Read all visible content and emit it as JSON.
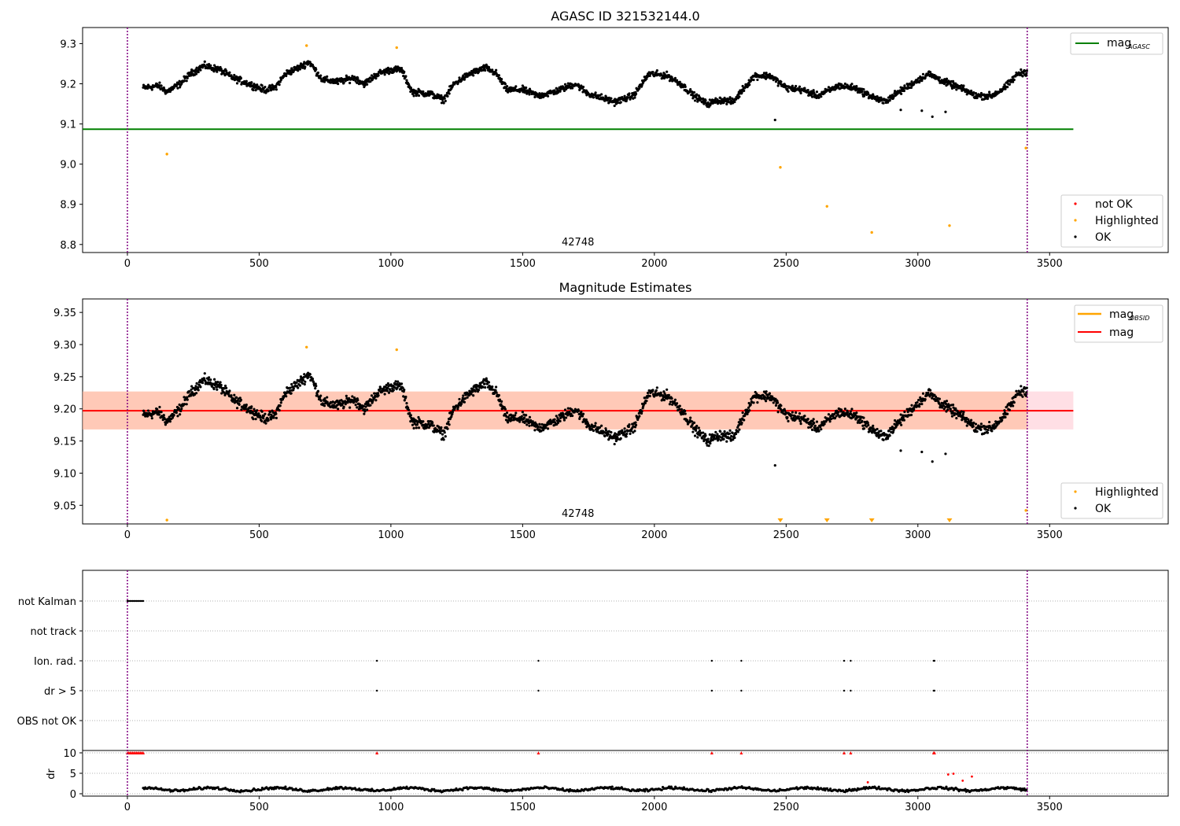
{
  "chart_data": [
    {
      "type": "scatter",
      "title": "AGASC ID 321532144.0",
      "xlim": [
        -170,
        3950
      ],
      "ylim": [
        8.78,
        9.34
      ],
      "x_ticks": [
        "0",
        "500",
        "1000",
        "1500",
        "2000",
        "2500",
        "3000",
        "3500"
      ],
      "y_ticks": [
        "8.8",
        "8.9",
        "9.0",
        "9.1",
        "9.2",
        "9.3"
      ],
      "obs_label": "42748",
      "obs_boundaries": [
        0,
        3415
      ],
      "mag_agasc": 9.087,
      "line_legend": [
        {
          "name": "mag",
          "sub": "AGASC",
          "color": "#008000"
        }
      ],
      "point_legend": [
        {
          "name": "not OK",
          "color": "#ff0000"
        },
        {
          "name": "Highlighted",
          "color": "#ffa500"
        },
        {
          "name": "OK",
          "color": "#000000"
        }
      ],
      "highlighted": [
        [
          150,
          9.025
        ],
        [
          680,
          9.295
        ],
        [
          1022,
          9.29
        ],
        [
          2478,
          8.992
        ],
        [
          2655,
          8.895
        ],
        [
          2825,
          8.83
        ],
        [
          3120,
          8.847
        ],
        [
          3410,
          9.04
        ]
      ],
      "outliers": [
        [
          2458,
          9.11
        ],
        [
          2935,
          9.135
        ],
        [
          3015,
          9.133
        ],
        [
          3055,
          9.118
        ],
        [
          3105,
          9.13
        ]
      ],
      "series_profile": [
        [
          60,
          9.19
        ],
        [
          120,
          9.195
        ],
        [
          150,
          9.18
        ],
        [
          200,
          9.2
        ],
        [
          240,
          9.225
        ],
        [
          290,
          9.245
        ],
        [
          350,
          9.235
        ],
        [
          400,
          9.215
        ],
        [
          460,
          9.2
        ],
        [
          520,
          9.185
        ],
        [
          560,
          9.19
        ],
        [
          600,
          9.225
        ],
        [
          650,
          9.24
        ],
        [
          690,
          9.255
        ],
        [
          740,
          9.21
        ],
        [
          800,
          9.205
        ],
        [
          860,
          9.215
        ],
        [
          900,
          9.2
        ],
        [
          950,
          9.225
        ],
        [
          1000,
          9.235
        ],
        [
          1040,
          9.235
        ],
        [
          1080,
          9.18
        ],
        [
          1150,
          9.175
        ],
        [
          1200,
          9.16
        ],
        [
          1240,
          9.2
        ],
        [
          1300,
          9.225
        ],
        [
          1360,
          9.24
        ],
        [
          1400,
          9.225
        ],
        [
          1440,
          9.185
        ],
        [
          1500,
          9.185
        ],
        [
          1560,
          9.17
        ],
        [
          1620,
          9.18
        ],
        [
          1700,
          9.2
        ],
        [
          1750,
          9.175
        ],
        [
          1800,
          9.165
        ],
        [
          1850,
          9.155
        ],
        [
          1920,
          9.17
        ],
        [
          1980,
          9.225
        ],
        [
          2050,
          9.22
        ],
        [
          2100,
          9.2
        ],
        [
          2150,
          9.17
        ],
        [
          2200,
          9.15
        ],
        [
          2250,
          9.16
        ],
        [
          2300,
          9.155
        ],
        [
          2340,
          9.19
        ],
        [
          2380,
          9.22
        ],
        [
          2440,
          9.22
        ],
        [
          2500,
          9.19
        ],
        [
          2560,
          9.185
        ],
        [
          2620,
          9.17
        ],
        [
          2700,
          9.195
        ],
        [
          2760,
          9.19
        ],
        [
          2820,
          9.17
        ],
        [
          2870,
          9.155
        ],
        [
          2930,
          9.18
        ],
        [
          2990,
          9.205
        ],
        [
          3040,
          9.225
        ],
        [
          3100,
          9.205
        ],
        [
          3160,
          9.19
        ],
        [
          3220,
          9.17
        ],
        [
          3280,
          9.17
        ],
        [
          3330,
          9.19
        ],
        [
          3380,
          9.225
        ],
        [
          3415,
          9.23
        ]
      ]
    },
    {
      "type": "scatter",
      "title": "Magnitude Estimates",
      "xlim": [
        -170,
        3950
      ],
      "ylim": [
        9.021,
        9.371
      ],
      "x_ticks": [
        "0",
        "500",
        "1000",
        "1500",
        "2000",
        "2500",
        "3000",
        "3500"
      ],
      "y_ticks": [
        "9.05",
        "9.10",
        "9.15",
        "9.20",
        "9.25",
        "9.30",
        "9.35"
      ],
      "obs_label": "42748",
      "mag": 9.197,
      "band_obsid": [
        9.168,
        9.227
      ],
      "band_total": [
        9.168,
        9.227
      ],
      "line_legend": [
        {
          "name": "mag",
          "sub": "OBSID",
          "color": "#ffa500"
        },
        {
          "name": "mag",
          "sub": "",
          "color": "#ff0000"
        }
      ],
      "point_legend": [
        {
          "name": "Highlighted",
          "color": "#ffa500"
        },
        {
          "name": "OK",
          "color": "#000000"
        }
      ],
      "highlighted": [
        [
          150,
          9.027
        ],
        [
          680,
          9.296
        ],
        [
          1022,
          9.292
        ],
        [
          3410,
          9.042
        ]
      ],
      "off_scale_markers": [
        2478,
        2655,
        2825,
        3120
      ],
      "outliers": [
        [
          2458,
          9.112
        ],
        [
          2935,
          9.135
        ],
        [
          3015,
          9.133
        ],
        [
          3055,
          9.118
        ],
        [
          3105,
          9.13
        ]
      ]
    },
    {
      "type": "scatter",
      "title": "",
      "xlim": [
        -170,
        3950
      ],
      "x_ticks": [
        "0",
        "500",
        "1000",
        "1500",
        "2000",
        "2500",
        "3000",
        "3500"
      ],
      "flag_rows": [
        "not Kalman",
        "not track",
        "Ion. rad.",
        "dr > 5",
        "OBS not OK"
      ],
      "flag_points": {
        "not Kalman": [
          0,
          5,
          10,
          15,
          20,
          25,
          30,
          35,
          40,
          45,
          50,
          55,
          60
        ],
        "Ion. rad.": [
          947,
          1560,
          2218,
          2330,
          2720,
          2745,
          3060,
          3063
        ],
        "dr > 5": [
          947,
          1560,
          2218,
          2330,
          2720,
          2745,
          3060,
          3063
        ]
      },
      "dr_ylabel": "dr",
      "dr_ticks": [
        "0",
        "5",
        "10"
      ],
      "dr_red_top": [
        0,
        5,
        10,
        15,
        20,
        25,
        30,
        35,
        40,
        45,
        50,
        55,
        60,
        947,
        1560,
        2218,
        2330,
        2720,
        2745,
        3060,
        3063
      ],
      "dr_red_mid": [
        [
          2810,
          2.8
        ],
        [
          3115,
          4.7
        ],
        [
          3135,
          4.9
        ],
        [
          3170,
          3.2
        ],
        [
          3205,
          4.2
        ]
      ]
    }
  ]
}
